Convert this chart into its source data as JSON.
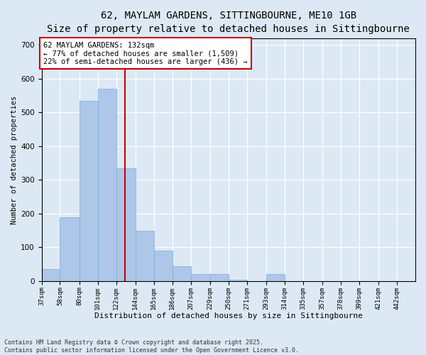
{
  "title_line1": "62, MAYLAM GARDENS, SITTINGBOURNE, ME10 1GB",
  "title_line2": "Size of property relative to detached houses in Sittingbourne",
  "xlabel": "Distribution of detached houses by size in Sittingbourne",
  "ylabel": "Number of detached properties",
  "bar_edges": [
    37,
    58,
    80,
    101,
    122,
    144,
    165,
    186,
    207,
    229,
    250,
    271,
    293,
    314,
    335,
    357,
    378,
    399,
    421,
    442,
    463
  ],
  "bar_heights": [
    35,
    190,
    535,
    570,
    335,
    150,
    90,
    45,
    20,
    20,
    5,
    0,
    20,
    0,
    0,
    0,
    0,
    0,
    0,
    0
  ],
  "bar_color": "#aec6e8",
  "bar_edge_color": "#7ab0d4",
  "property_size": 132,
  "red_line_color": "#cc0000",
  "annotation_text": "62 MAYLAM GARDENS: 132sqm\n← 77% of detached houses are smaller (1,509)\n22% of semi-detached houses are larger (436) →",
  "annotation_box_color": "#ffffff",
  "annotation_box_edge": "#cc0000",
  "ylim": [
    0,
    720
  ],
  "yticks": [
    0,
    100,
    200,
    300,
    400,
    500,
    600,
    700
  ],
  "background_color": "#dce9f5",
  "plot_bg_color": "#dce9f5",
  "footer_line1": "Contains HM Land Registry data © Crown copyright and database right 2025.",
  "footer_line2": "Contains public sector information licensed under the Open Government Licence v3.0.",
  "title_fontsize": 10,
  "subtitle_fontsize": 9,
  "tick_label_fontsize": 6.5,
  "annotation_fontsize": 7.5,
  "ylabel_fontsize": 7.5,
  "xlabel_fontsize": 8
}
